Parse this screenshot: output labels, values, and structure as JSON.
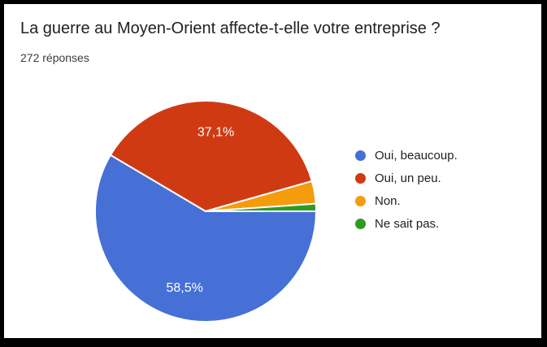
{
  "header": {
    "title": "La guerre au Moyen-Orient affecte-t-elle votre entreprise ?",
    "responses_count": "272 réponses"
  },
  "chart_data": {
    "type": "pie",
    "title": "La guerre au Moyen-Orient affecte-t-elle votre entreprise ?",
    "subtitle": "272 réponses",
    "legend_position": "right",
    "start_angle_deg": 0,
    "direction": "clockwise",
    "label_color": "#ffffff",
    "slice_stroke_color": "#ffffff",
    "slices": [
      {
        "label": "Oui, beaucoup.",
        "percent": 58.5,
        "display": "58,5%",
        "color": "#4670D6",
        "show_label": true
      },
      {
        "label": "Oui, un peu.",
        "percent": 37.1,
        "display": "37,1%",
        "color": "#D03A12",
        "show_label": true
      },
      {
        "label": "Non.",
        "percent": 3.3,
        "display": "3,3%",
        "color": "#F49C0C",
        "show_label": false
      },
      {
        "label": "Ne sait pas.",
        "percent": 1.1,
        "display": "1,1%",
        "color": "#2E9B20",
        "show_label": false
      }
    ]
  }
}
